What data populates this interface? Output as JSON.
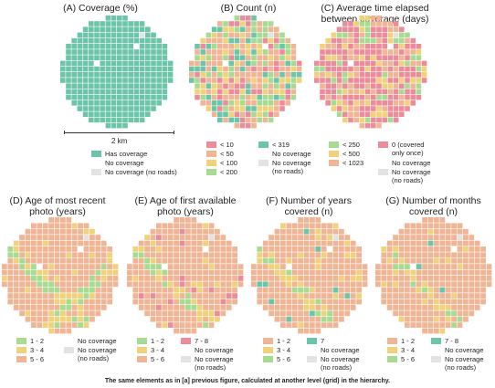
{
  "colors": {
    "teal": "#6cc5a8",
    "pink": "#ec8c9a",
    "peach": "#f0b595",
    "yellow": "#f0d27a",
    "green": "#a6db91",
    "ltgray": "#e3e3e3",
    "white": "#ffffff"
  },
  "caption": "The same elements as in [a] previous figure, calculated at another level (grid) in the hierarchy.",
  "scale_label": "2 km",
  "panels": [
    {
      "id": "A",
      "title": "(A) Coverage (%)",
      "legend": [
        {
          "label": "Has coverage",
          "color": "teal"
        },
        {
          "label": "No coverage",
          "color": "white"
        },
        {
          "label": "No coverage (no roads)",
          "color": "ltgray"
        }
      ]
    },
    {
      "id": "B",
      "title": "(B) Count (n)",
      "legend_col1": [
        {
          "label": "< 10",
          "color": "pink"
        },
        {
          "label": "< 50",
          "color": "peach"
        },
        {
          "label": "< 100",
          "color": "yellow"
        },
        {
          "label": "< 200",
          "color": "green"
        }
      ],
      "legend_col2": [
        {
          "label": "< 319",
          "color": "teal"
        },
        {
          "label": "No coverage",
          "color": "white"
        },
        {
          "label": "No coverage\n(no roads)",
          "color": "ltgray"
        }
      ]
    },
    {
      "id": "C",
      "title": "(C) Average time elapsed\nbetween coverage (days)",
      "legend_col1": [
        {
          "label": "< 250",
          "color": "green"
        },
        {
          "label": "< 500",
          "color": "yellow"
        },
        {
          "label": "< 1023",
          "color": "peach"
        }
      ],
      "legend_col2": [
        {
          "label": "0 (covered\nonly once)",
          "color": "pink"
        },
        {
          "label": "No coverage",
          "color": "white"
        },
        {
          "label": "No coverage\n(no roads)",
          "color": "ltgray"
        }
      ]
    },
    {
      "id": "D",
      "title": "(D) Age of most recent\nphoto (years)",
      "legend_col1": [
        {
          "label": "1 - 2",
          "color": "green"
        },
        {
          "label": "3 - 4",
          "color": "yellow"
        },
        {
          "label": "5 - 6",
          "color": "peach"
        }
      ],
      "legend_col2": [
        {
          "label": "No coverage",
          "color": "white"
        },
        {
          "label": "No coverage\n(no roads)",
          "color": "ltgray"
        }
      ]
    },
    {
      "id": "E",
      "title": "(E) Age of first available\nphoto (years)",
      "legend_col1": [
        {
          "label": "1 - 2",
          "color": "green"
        },
        {
          "label": "3 - 4",
          "color": "yellow"
        },
        {
          "label": "5 - 6",
          "color": "peach"
        }
      ],
      "legend_col2": [
        {
          "label": "7 - 8",
          "color": "pink"
        },
        {
          "label": "No coverage",
          "color": "white"
        },
        {
          "label": "No coverage\n(no roads)",
          "color": "ltgray"
        }
      ]
    },
    {
      "id": "F",
      "title": "(F) Number of years\ncovered (n)",
      "legend_col1": [
        {
          "label": "1 - 2",
          "color": "peach"
        },
        {
          "label": "3 - 4",
          "color": "yellow"
        },
        {
          "label": "5 - 6",
          "color": "green"
        }
      ],
      "legend_col2": [
        {
          "label": "7",
          "color": "teal"
        },
        {
          "label": "No coverage",
          "color": "white"
        },
        {
          "label": "No coverage\n(no roads)",
          "color": "ltgray"
        }
      ]
    },
    {
      "id": "G",
      "title": "(G) Number of months\ncovered (n)",
      "legend_col1": [
        {
          "label": "1 - 2",
          "color": "peach"
        },
        {
          "label": "3 - 4",
          "color": "yellow"
        },
        {
          "label": "5 - 6",
          "color": "green"
        }
      ],
      "legend_col2": [
        {
          "label": "7 - 8",
          "color": "teal"
        },
        {
          "label": "No coverage",
          "color": "white"
        },
        {
          "label": "No coverage\n(no roads)",
          "color": "ltgray"
        }
      ]
    }
  ]
}
